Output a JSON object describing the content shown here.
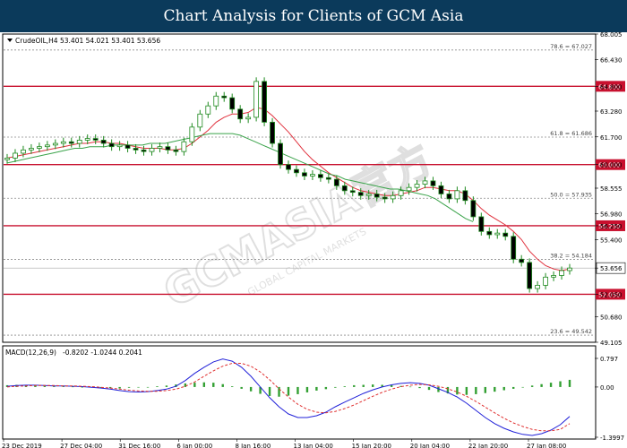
{
  "header": {
    "title": "Chart Analysis for Clients of GCM Asia"
  },
  "watermark": {
    "text": "GCMASIA官方",
    "subtext": "GLOBAL CAPITAL MARKETS"
  },
  "colors": {
    "header_bg": "#0b3a5b",
    "candle": "#1f8a1f",
    "ma_fast": "#e0303c",
    "ma_slow": "#3aa34a",
    "level_line": "#c8102e",
    "fib_line": "#8a8a8a",
    "macd_hist": "#33a033",
    "macd_line": "#2020d8",
    "signal_line": "#e03030"
  },
  "chart_data": [
    {
      "type": "line",
      "title": "CrudeOIL,H4",
      "ohlc_readout": "53.401 54.021 53.401 53.656",
      "x_tick_labels": [
        "23 Dec 2019",
        "27 Dec 04:00",
        "31 Dec 16:00",
        "6 Jan 00:00",
        "8 Jan 16:00",
        "13 Jan 04:00",
        "15 Jan 20:00",
        "20 Jan 04:00",
        "22 Jan 20:00",
        "27 Jan 08:00"
      ],
      "y_tick_labels": [
        "68.005",
        "66.430",
        "64.800",
        "63.280",
        "61.700",
        "60.000",
        "58.555",
        "56.980",
        "56.250",
        "55.400",
        "53.656",
        "52.050",
        "50.680",
        "49.105"
      ],
      "ylim": [
        49.105,
        68.005
      ],
      "last_price": 53.656,
      "horizontal_levels": [
        {
          "label": "64.800",
          "value": 64.8
        },
        {
          "label": "60.000",
          "value": 60.0
        },
        {
          "label": "56.250",
          "value": 56.25
        },
        {
          "label": "52.050",
          "value": 52.05
        }
      ],
      "fibonacci_levels": [
        {
          "label": "78.6 = 67.027",
          "value": 67.027
        },
        {
          "label": "61.8 = 61.686",
          "value": 61.686
        },
        {
          "label": "50.0 = 57.935",
          "value": 57.935
        },
        {
          "label": "38.2 = 54.184",
          "value": 54.184
        },
        {
          "label": "23.6 = 49.542",
          "value": 49.542
        }
      ],
      "close_series": [
        60.4,
        60.7,
        60.9,
        61.0,
        61.1,
        61.2,
        61.3,
        61.4,
        61.3,
        61.5,
        61.6,
        61.5,
        61.3,
        61.1,
        61.2,
        61.0,
        60.9,
        60.8,
        61.0,
        61.1,
        60.9,
        60.8,
        61.4,
        62.3,
        63.1,
        63.6,
        64.2,
        64.1,
        63.4,
        62.8,
        62.9,
        65.1,
        62.6,
        61.3,
        60.0,
        59.7,
        59.5,
        59.3,
        59.4,
        59.2,
        59.1,
        58.7,
        58.4,
        58.3,
        58.1,
        58.2,
        58.0,
        57.9,
        58.1,
        58.4,
        58.6,
        58.8,
        59.0,
        58.7,
        58.2,
        57.9,
        58.4,
        57.8,
        56.8,
        55.9,
        55.7,
        55.8,
        55.6,
        54.2,
        54.0,
        52.4,
        52.6,
        53.1,
        53.2,
        53.5,
        53.656
      ],
      "ma_fast_series": [
        60.4,
        60.5,
        60.6,
        60.7,
        60.8,
        60.9,
        61.0,
        61.1,
        61.2,
        61.3,
        61.3,
        61.4,
        61.4,
        61.3,
        61.3,
        61.2,
        61.1,
        61.0,
        61.0,
        61.0,
        60.9,
        60.9,
        61.0,
        61.3,
        61.7,
        62.1,
        62.6,
        62.9,
        63.1,
        63.1,
        63.2,
        63.5,
        63.4,
        63.0,
        62.5,
        62.0,
        61.4,
        60.8,
        60.3,
        59.9,
        59.5,
        59.2,
        58.9,
        58.6,
        58.4,
        58.3,
        58.2,
        58.1,
        58.1,
        58.2,
        58.3,
        58.4,
        58.6,
        58.6,
        58.5,
        58.4,
        58.4,
        58.2,
        57.8,
        57.3,
        56.9,
        56.6,
        56.3,
        55.9,
        55.4,
        54.7,
        54.2,
        53.8,
        53.6,
        53.5,
        53.6
      ],
      "ma_slow_series": [
        60.1,
        60.2,
        60.3,
        60.4,
        60.5,
        60.6,
        60.7,
        60.8,
        60.9,
        61.0,
        61.0,
        61.1,
        61.1,
        61.1,
        61.2,
        61.2,
        61.2,
        61.2,
        61.2,
        61.3,
        61.3,
        61.3,
        61.4,
        61.5,
        61.6,
        61.7,
        61.8,
        61.9,
        61.9,
        61.9,
        61.9,
        61.8,
        61.6,
        61.4,
        61.2,
        61.0,
        60.8,
        60.6,
        60.4,
        60.2,
        60.0,
        59.8,
        59.6,
        59.4,
        59.3,
        59.1,
        59.0,
        58.9,
        58.8,
        58.7,
        58.6,
        58.5,
        58.5,
        58.4,
        58.3,
        58.2,
        58.1,
        57.9,
        57.6,
        57.3,
        57.0,
        56.7,
        56.5
      ]
    },
    {
      "type": "bar",
      "title": "MACD(12,26,9)",
      "readout": "-0.8202 -1.0244 0.2041",
      "y_tick_labels": [
        "0.797",
        "0.00",
        "-1.3997"
      ],
      "ylim": [
        -1.3997,
        0.797
      ],
      "histogram": [
        0.05,
        0.06,
        0.05,
        0.04,
        0.03,
        0.02,
        0.02,
        0.01,
        0.0,
        -0.01,
        -0.02,
        -0.03,
        -0.04,
        -0.02,
        -0.01,
        0.0,
        0.02,
        0.04,
        0.07,
        0.1,
        0.12,
        0.13,
        0.12,
        0.08,
        0.02,
        -0.05,
        -0.12,
        -0.19,
        -0.25,
        -0.27,
        -0.24,
        -0.2,
        -0.15,
        -0.1,
        -0.06,
        -0.02,
        0.02,
        0.05,
        0.06,
        0.07,
        0.06,
        0.05,
        0.03,
        0.01,
        -0.03,
        -0.08,
        -0.14,
        -0.18,
        -0.21,
        -0.22,
        -0.2,
        -0.17,
        -0.13,
        -0.09,
        -0.05,
        0.0,
        0.04,
        0.08,
        0.12,
        0.16,
        0.2
      ],
      "macd_line": [
        0.02,
        0.04,
        0.05,
        0.05,
        0.04,
        0.03,
        0.03,
        0.02,
        0.01,
        -0.01,
        -0.03,
        -0.06,
        -0.1,
        -0.13,
        -0.14,
        -0.13,
        -0.1,
        -0.06,
        0.02,
        0.18,
        0.38,
        0.55,
        0.7,
        0.78,
        0.72,
        0.55,
        0.3,
        0.0,
        -0.3,
        -0.55,
        -0.75,
        -0.85,
        -0.85,
        -0.8,
        -0.7,
        -0.55,
        -0.42,
        -0.3,
        -0.18,
        -0.08,
        0.0,
        0.06,
        0.1,
        0.12,
        0.1,
        0.05,
        -0.05,
        -0.15,
        -0.28,
        -0.45,
        -0.65,
        -0.85,
        -1.02,
        -1.15,
        -1.25,
        -1.32,
        -1.35,
        -1.3,
        -1.2,
        -1.05,
        -0.82
      ],
      "signal_line": [
        0.0,
        0.02,
        0.03,
        0.04,
        0.04,
        0.04,
        0.03,
        0.03,
        0.02,
        0.01,
        -0.01,
        -0.03,
        -0.06,
        -0.09,
        -0.11,
        -0.12,
        -0.12,
        -0.1,
        -0.06,
        0.02,
        0.14,
        0.3,
        0.45,
        0.58,
        0.66,
        0.66,
        0.58,
        0.42,
        0.2,
        -0.05,
        -0.28,
        -0.48,
        -0.62,
        -0.7,
        -0.72,
        -0.68,
        -0.6,
        -0.5,
        -0.38,
        -0.26,
        -0.15,
        -0.06,
        0.01,
        0.05,
        0.07,
        0.06,
        0.02,
        -0.05,
        -0.14,
        -0.26,
        -0.4,
        -0.56,
        -0.72,
        -0.87,
        -1.0,
        -1.1,
        -1.18,
        -1.22,
        -1.22,
        -1.18,
        -1.02
      ]
    }
  ]
}
